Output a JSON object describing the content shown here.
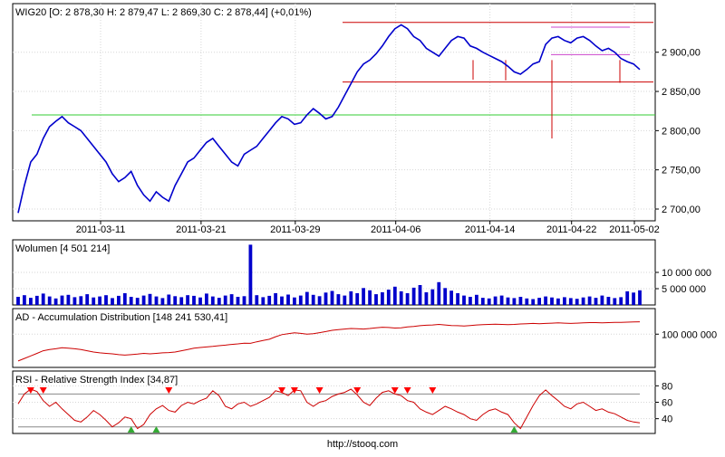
{
  "footer": "http://stooq.com",
  "colors": {
    "price": "#0000cc",
    "volume": "#0000cc",
    "ad": "#cc0000",
    "rsi": "#cc0000",
    "support": "#33cc33",
    "resistance": "#cc0000",
    "channel": "#cc44cc",
    "marker_sell": "#ff0000",
    "marker_buy": "#33aa33"
  },
  "chart_data": [
    {
      "type": "line",
      "panel": "price",
      "title": "WIG20 [O: 2 878,30  H: 2 879,47  L: 2 869,30  C: 2 878,44] (+0,01%)",
      "x_ticks": [
        "2011-03-11",
        "2011-03-21",
        "2011-03-29",
        "2011-04-06",
        "2011-04-14",
        "2011-04-22",
        "2011-05-02"
      ],
      "y_ticks": [
        "2 700,00",
        "2 750,00",
        "2 800,00",
        "2 850,00",
        "2 900,00"
      ],
      "y_tick_values": [
        2700,
        2750,
        2800,
        2850,
        2900
      ],
      "ylim": [
        2685,
        2962
      ],
      "series": [
        {
          "values": [
            2695,
            2730,
            2760,
            2770,
            2790,
            2805,
            2812,
            2818,
            2810,
            2805,
            2800,
            2790,
            2780,
            2770,
            2760,
            2745,
            2735,
            2740,
            2748,
            2730,
            2718,
            2710,
            2722,
            2715,
            2710,
            2730,
            2745,
            2760,
            2765,
            2775,
            2785,
            2790,
            2780,
            2770,
            2760,
            2755,
            2770,
            2775,
            2780,
            2790,
            2800,
            2810,
            2818,
            2815,
            2808,
            2810,
            2820,
            2828,
            2822,
            2815,
            2818,
            2830,
            2845,
            2860,
            2875,
            2885,
            2890,
            2898,
            2908,
            2920,
            2930,
            2935,
            2930,
            2920,
            2915,
            2905,
            2900,
            2895,
            2905,
            2915,
            2920,
            2918,
            2908,
            2905,
            2900,
            2896,
            2892,
            2888,
            2882,
            2875,
            2872,
            2878,
            2885,
            2888,
            2910,
            2918,
            2920,
            2915,
            2912,
            2918,
            2920,
            2915,
            2908,
            2902,
            2905,
            2900,
            2892,
            2888,
            2885,
            2878
          ]
        }
      ],
      "support_level": 2820,
      "resistance_levels": [
        2938,
        2862
      ],
      "channel_levels": [
        2932,
        2897
      ],
      "wick_lows": [
        2865,
        2864,
        2790,
        2861
      ]
    },
    {
      "type": "bar",
      "panel": "volume",
      "title": "Wolumen [4 501 214]",
      "y_ticks": [
        "5 000 000",
        "10 000 000"
      ],
      "y_tick_values": [
        5000000,
        10000000
      ],
      "ylim": [
        0,
        20000000
      ],
      "values": [
        2500000,
        3000000,
        2200000,
        2800000,
        3500000,
        2600000,
        2000000,
        2900000,
        3100000,
        2400000,
        2700000,
        3300000,
        2300000,
        2600000,
        3000000,
        2100000,
        2800000,
        3600000,
        2500000,
        2200000,
        2900000,
        3400000,
        2600000,
        2100000,
        3200000,
        2700000,
        2400000,
        3000000,
        2800000,
        2300000,
        3500000,
        2600000,
        2200000,
        2900000,
        3300000,
        2500000,
        2700000,
        18500000,
        3000000,
        2400000,
        2800000,
        3600000,
        2600000,
        3200000,
        2300000,
        2900000,
        4000000,
        3100000,
        2700000,
        3800000,
        4300000,
        3300000,
        2900000,
        4200000,
        3600000,
        5200000,
        4500000,
        3300000,
        3900000,
        4700000,
        5600000,
        4200000,
        3600000,
        5300000,
        6100000,
        3900000,
        4800000,
        7000000,
        5200000,
        4400000,
        3600000,
        2900000,
        2500000,
        3100000,
        2200000,
        2000000,
        2600000,
        2900000,
        2300000,
        2100000,
        2500000,
        2000000,
        1800000,
        2200000,
        2600000,
        2300000,
        2000000,
        2400000,
        2100000,
        1900000,
        2300000,
        2600000,
        2200000,
        2900000,
        2500000,
        2100000,
        2400000,
        4200000,
        3800000,
        4500000
      ]
    },
    {
      "type": "line",
      "panel": "ad",
      "title": "AD - Accumulation Distribution [148 241 530,41]",
      "y_ticks": [
        "100 000 000"
      ],
      "y_tick_values": [
        100000000
      ],
      "ylim": [
        -30000000,
        200000000
      ],
      "series": [
        {
          "values": [
            -5000000,
            5000000,
            15000000,
            25000000,
            35000000,
            40000000,
            43000000,
            47000000,
            45000000,
            43000000,
            40000000,
            35000000,
            30000000,
            27000000,
            25000000,
            23000000,
            20000000,
            18000000,
            20000000,
            22000000,
            25000000,
            23000000,
            25000000,
            27000000,
            28000000,
            30000000,
            35000000,
            40000000,
            45000000,
            48000000,
            50000000,
            52000000,
            55000000,
            57000000,
            60000000,
            62000000,
            65000000,
            64000000,
            70000000,
            75000000,
            80000000,
            90000000,
            98000000,
            102000000,
            105000000,
            103000000,
            100000000,
            102000000,
            106000000,
            110000000,
            115000000,
            118000000,
            120000000,
            122000000,
            121000000,
            120000000,
            122000000,
            125000000,
            127000000,
            126000000,
            124000000,
            125000000,
            128000000,
            130000000,
            133000000,
            135000000,
            136000000,
            138000000,
            136000000,
            134000000,
            133000000,
            132000000,
            134000000,
            136000000,
            137000000,
            138000000,
            139000000,
            138000000,
            137000000,
            138000000,
            140000000,
            141000000,
            142000000,
            141000000,
            142000000,
            143000000,
            144000000,
            143000000,
            142000000,
            143000000,
            144000000,
            145000000,
            145000000,
            144000000,
            145000000,
            146000000,
            146000000,
            147000000,
            148000000,
            148241530
          ]
        }
      ]
    },
    {
      "type": "line",
      "panel": "rsi",
      "title": "RSI - Relative Strength Index [34,87]",
      "y_ticks": [
        "40",
        "60",
        "80"
      ],
      "y_tick_values": [
        40,
        60,
        80
      ],
      "ylim": [
        22,
        98
      ],
      "reference_levels": [
        30,
        70
      ],
      "series": [
        {
          "values": [
            58,
            70,
            76,
            73,
            62,
            55,
            60,
            52,
            45,
            38,
            36,
            42,
            50,
            45,
            38,
            30,
            35,
            42,
            40,
            28,
            33,
            45,
            52,
            56,
            50,
            48,
            56,
            60,
            58,
            62,
            65,
            74,
            68,
            55,
            52,
            58,
            60,
            55,
            58,
            62,
            66,
            74,
            72,
            68,
            75,
            74,
            60,
            55,
            60,
            62,
            67,
            70,
            72,
            76,
            69,
            60,
            56,
            65,
            72,
            74,
            70,
            68,
            62,
            60,
            52,
            48,
            45,
            50,
            55,
            52,
            48,
            45,
            40,
            38,
            45,
            50,
            52,
            48,
            45,
            35,
            28,
            42,
            56,
            68,
            75,
            68,
            62,
            55,
            52,
            58,
            60,
            55,
            50,
            52,
            48,
            46,
            42,
            38,
            36,
            35
          ]
        }
      ],
      "sell_markers": [
        2,
        4,
        24,
        42,
        44,
        48,
        54,
        60,
        62,
        66
      ],
      "buy_markers": [
        18,
        22,
        79
      ]
    }
  ]
}
